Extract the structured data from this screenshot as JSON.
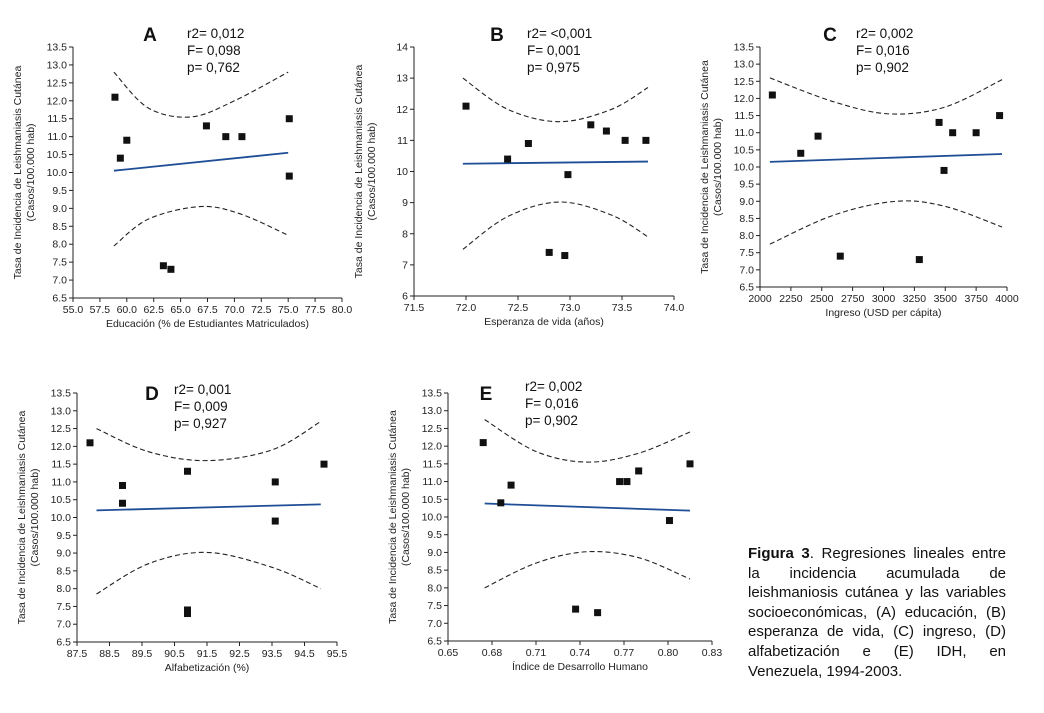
{
  "figure": {
    "caption_label": "Figura 3",
    "caption_text": ". Regresiones lineales entre la incidencia acumulada de leishmaniosis cutánea y las variables socioeconómicas, (A) educación, (B) esperanza de vida, (C) ingreso, (D) alfabetización e (E) IDH, en Venezuela, 1994-2003."
  },
  "chart_data": [
    {
      "type": "scatter",
      "panel": "A",
      "stats": [
        "r2= 0,012",
        "F= 0,098",
        "p= 0,762"
      ],
      "xlabel": "Educación (% de Estudiantes Matriculados)",
      "ylabel_lines": [
        "Tasa de Incidencia de Leishmaniasis Cutánea",
        "(Casos/100.000 hab)"
      ],
      "xlim": [
        55,
        80
      ],
      "ylim": [
        6.5,
        13.5
      ],
      "xticks": [
        55,
        57.5,
        60,
        62.5,
        65,
        67.5,
        70,
        72.5,
        75,
        77.5,
        80
      ],
      "xtick_labels": [
        "55.0",
        "57.5",
        "60.0",
        "62.5",
        "65.0",
        "67.5",
        "70.0",
        "72.5",
        "75.0",
        "77.5",
        "80.0"
      ],
      "yticks": [
        6.5,
        7,
        7.5,
        8,
        8.5,
        9,
        9.5,
        10,
        10.5,
        11,
        11.5,
        12,
        12.5,
        13,
        13.5
      ],
      "ytick_labels": [
        "6.5",
        "7.0",
        "7.5",
        "8.0",
        "8.5",
        "9.0",
        "9.5",
        "10.0",
        "10.5",
        "11.0",
        "11.5",
        "12.0",
        "12.5",
        "13.0",
        "13.5"
      ],
      "points": [
        [
          58.9,
          12.1
        ],
        [
          59.4,
          10.4
        ],
        [
          60,
          10.9
        ],
        [
          63.4,
          7.4
        ],
        [
          64.1,
          7.3
        ],
        [
          67.4,
          11.3
        ],
        [
          69.2,
          11
        ],
        [
          70.7,
          11
        ],
        [
          75.1,
          11.5
        ],
        [
          75.1,
          9.9
        ]
      ],
      "fit": [
        [
          58.8,
          10.05
        ],
        [
          75,
          10.55
        ]
      ],
      "ci_upper": [
        [
          58.8,
          12.8
        ],
        [
          62,
          11.8
        ],
        [
          66,
          11.55
        ],
        [
          70,
          12
        ],
        [
          75,
          12.8
        ]
      ],
      "ci_lower": [
        [
          58.8,
          7.95
        ],
        [
          62,
          8.7
        ],
        [
          66.8,
          9.05
        ],
        [
          70.5,
          8.85
        ],
        [
          75,
          8.25
        ]
      ]
    },
    {
      "type": "scatter",
      "panel": "B",
      "stats": [
        "r2= <0,001",
        "F= 0,001",
        "p= 0,975"
      ],
      "xlabel": "Esperanza de vida (años)",
      "ylabel_lines": [
        "Tasa de Incidencia de Leishmaniasis Cutánea",
        "(Casos/100.000 hab)"
      ],
      "xlim": [
        71.5,
        74
      ],
      "ylim": [
        6,
        14
      ],
      "xticks": [
        71.5,
        72,
        72.5,
        73,
        73.5,
        74
      ],
      "xtick_labels": [
        "71.5",
        "72.0",
        "72.5",
        "73.0",
        "73.5",
        "74.0"
      ],
      "yticks": [
        6,
        7,
        8,
        9,
        10,
        11,
        12,
        13,
        14
      ],
      "ytick_labels": [
        "6",
        "7",
        "8",
        "9",
        "10",
        "11",
        "12",
        "13",
        "14"
      ],
      "points": [
        [
          72,
          12.1
        ],
        [
          72.4,
          10.4
        ],
        [
          72.6,
          10.9
        ],
        [
          72.8,
          7.4
        ],
        [
          72.95,
          7.3
        ],
        [
          72.98,
          9.9
        ],
        [
          73.2,
          11.5
        ],
        [
          73.35,
          11.3
        ],
        [
          73.53,
          11
        ],
        [
          73.73,
          11
        ]
      ],
      "fit": [
        [
          71.97,
          10.25
        ],
        [
          73.75,
          10.32
        ]
      ],
      "ci_upper": [
        [
          71.97,
          13
        ],
        [
          72.4,
          12
        ],
        [
          72.9,
          11.6
        ],
        [
          73.4,
          12
        ],
        [
          73.75,
          12.7
        ]
      ],
      "ci_lower": [
        [
          71.97,
          7.5
        ],
        [
          72.4,
          8.55
        ],
        [
          72.9,
          9.02
        ],
        [
          73.4,
          8.6
        ],
        [
          73.75,
          7.9
        ]
      ]
    },
    {
      "type": "scatter",
      "panel": "C",
      "stats": [
        "r2= 0,002",
        "F= 0,016",
        "p= 0,902"
      ],
      "xlabel": "Ingreso (USD per cápita)",
      "ylabel_lines": [
        "Tasa de Incidencia de Leishmaniasis Cutánea",
        "(Casos/100.000 hab)"
      ],
      "xlim": [
        2000,
        4000
      ],
      "ylim": [
        6.5,
        13.5
      ],
      "xticks": [
        2000,
        2250,
        2500,
        2750,
        3000,
        3250,
        3500,
        3750,
        4000
      ],
      "xtick_labels": [
        "2000",
        "2250",
        "2500",
        "2750",
        "3000",
        "3250",
        "3500",
        "3750",
        "4000"
      ],
      "yticks": [
        6.5,
        7,
        7.5,
        8,
        8.5,
        9,
        9.5,
        10,
        10.5,
        11,
        11.5,
        12,
        12.5,
        13,
        13.5
      ],
      "ytick_labels": [
        "6.5",
        "7.0",
        "7.5",
        "8.0",
        "8.5",
        "9.0",
        "9.5",
        "10.0",
        "10.5",
        "11.0",
        "11.5",
        "12.0",
        "12.5",
        "13.0",
        "13.5"
      ],
      "points": [
        [
          2100,
          12.1
        ],
        [
          2330,
          10.4
        ],
        [
          2470,
          10.9
        ],
        [
          2650,
          7.4
        ],
        [
          3290,
          7.3
        ],
        [
          3450,
          11.3
        ],
        [
          3490,
          9.9
        ],
        [
          3560,
          11
        ],
        [
          3750,
          11
        ],
        [
          3940,
          11.5
        ]
      ],
      "fit": [
        [
          2080,
          10.15
        ],
        [
          3960,
          10.38
        ]
      ],
      "ci_upper": [
        [
          2080,
          12.6
        ],
        [
          2600,
          11.9
        ],
        [
          3050,
          11.55
        ],
        [
          3500,
          11.75
        ],
        [
          3960,
          12.55
        ]
      ],
      "ci_lower": [
        [
          2080,
          7.75
        ],
        [
          2600,
          8.6
        ],
        [
          3100,
          9
        ],
        [
          3500,
          8.85
        ],
        [
          3960,
          8.25
        ]
      ]
    },
    {
      "type": "scatter",
      "panel": "D",
      "stats": [
        "r2= 0,001",
        "F= 0,009",
        "p= 0,927"
      ],
      "xlabel": "Alfabetización (%)",
      "ylabel_lines": [
        "Tasa de Incidencia de Leishmaniasis Cutánea",
        "(Casos/100.000 hab)"
      ],
      "xlim": [
        87.5,
        95.5
      ],
      "ylim": [
        6.5,
        13.5
      ],
      "xticks": [
        87.5,
        88.5,
        89.5,
        90.5,
        91.5,
        92.5,
        93.5,
        94.5,
        95.5
      ],
      "xtick_labels": [
        "87.5",
        "88.5",
        "89.5",
        "90.5",
        "91.5",
        "92.5",
        "93.5",
        "94.5",
        "95.5"
      ],
      "yticks": [
        6.5,
        7,
        7.5,
        8,
        8.5,
        9,
        9.5,
        10,
        10.5,
        11,
        11.5,
        12,
        12.5,
        13,
        13.5
      ],
      "ytick_labels": [
        "6.5",
        "7.0",
        "7.5",
        "8.0",
        "8.5",
        "9.0",
        "9.5",
        "10.0",
        "10.5",
        "11.0",
        "11.5",
        "12.0",
        "12.5",
        "13.0",
        "13.5"
      ],
      "points": [
        [
          87.9,
          12.1
        ],
        [
          88.9,
          10.9
        ],
        [
          88.9,
          10.4
        ],
        [
          90.9,
          11.3
        ],
        [
          90.9,
          7.4
        ],
        [
          90.9,
          7.3
        ],
        [
          93.6,
          11
        ],
        [
          93.6,
          9.9
        ],
        [
          95.1,
          11.5
        ]
      ],
      "fit": [
        [
          88.1,
          10.2
        ],
        [
          95,
          10.37
        ]
      ],
      "ci_upper": [
        [
          88.1,
          12.5
        ],
        [
          89.7,
          11.85
        ],
        [
          91.5,
          11.6
        ],
        [
          93.5,
          11.9
        ],
        [
          95,
          12.7
        ]
      ],
      "ci_lower": [
        [
          88.1,
          7.85
        ],
        [
          89.7,
          8.7
        ],
        [
          91.5,
          9.02
        ],
        [
          93.5,
          8.6
        ],
        [
          95,
          8
        ]
      ]
    },
    {
      "type": "scatter",
      "panel": "E",
      "stats": [
        "r2= 0,002",
        "F= 0,016",
        "p= 0,902"
      ],
      "xlabel": "Índice de Desarrollo Humano",
      "ylabel_lines": [
        "Tasa de Incidencia de Leishmaniasis Cutánea",
        "(Casos/100.000 hab)"
      ],
      "xlim": [
        0.65,
        0.83
      ],
      "ylim": [
        6.5,
        13.5
      ],
      "xticks": [
        0.65,
        0.68,
        0.71,
        0.74,
        0.77,
        0.8,
        0.83
      ],
      "xtick_labels": [
        "0.65",
        "0.68",
        "0.71",
        "0.74",
        "0.77",
        "0.80",
        "0.83"
      ],
      "yticks": [
        6.5,
        7,
        7.5,
        8,
        8.5,
        9,
        9.5,
        10,
        10.5,
        11,
        11.5,
        12,
        12.5,
        13,
        13.5
      ],
      "ytick_labels": [
        "6.5",
        "7.0",
        "7.5",
        "8.0",
        "8.5",
        "9.0",
        "9.5",
        "10.0",
        "10.5",
        "11.0",
        "11.5",
        "12.0",
        "12.5",
        "13.0",
        "13.5"
      ],
      "points": [
        [
          0.674,
          12.1
        ],
        [
          0.686,
          10.4
        ],
        [
          0.693,
          10.9
        ],
        [
          0.737,
          7.4
        ],
        [
          0.752,
          7.3
        ],
        [
          0.767,
          11
        ],
        [
          0.772,
          11
        ],
        [
          0.78,
          11.3
        ],
        [
          0.801,
          9.9
        ],
        [
          0.815,
          11.5
        ]
      ],
      "fit": [
        [
          0.675,
          10.38
        ],
        [
          0.815,
          10.18
        ]
      ],
      "ci_upper": [
        [
          0.675,
          12.75
        ],
        [
          0.71,
          11.85
        ],
        [
          0.745,
          11.55
        ],
        [
          0.78,
          11.8
        ],
        [
          0.815,
          12.4
        ]
      ],
      "ci_lower": [
        [
          0.675,
          8
        ],
        [
          0.71,
          8.7
        ],
        [
          0.745,
          9.02
        ],
        [
          0.78,
          8.85
        ],
        [
          0.815,
          8.25
        ]
      ]
    }
  ]
}
